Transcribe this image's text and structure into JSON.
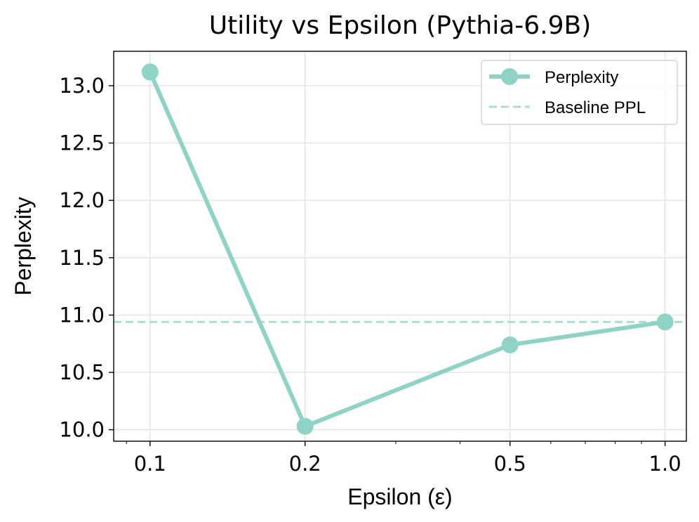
{
  "chart_data": {
    "type": "line",
    "title": "Utility vs Epsilon (Pythia-6.9B)",
    "xlabel": "Epsilon (ε)",
    "ylabel": "Perplexity",
    "x_scale": "log",
    "xlim": [
      0.085,
      1.1
    ],
    "ylim": [
      9.9,
      13.3
    ],
    "x_ticks": [
      0.1,
      0.2,
      0.5,
      1.0
    ],
    "x_tick_labels": [
      "0.1",
      "0.2",
      "0.5",
      "1.0"
    ],
    "y_ticks": [
      10.0,
      10.5,
      11.0,
      11.5,
      12.0,
      12.5,
      13.0
    ],
    "y_tick_labels": [
      "10.0",
      "10.5",
      "11.0",
      "11.5",
      "12.0",
      "12.5",
      "13.0"
    ],
    "grid": true,
    "legend_position": "top-right",
    "series": [
      {
        "name": "Perplexity",
        "style": "solid-line-circle-markers",
        "color": "#8fd3c7",
        "x": [
          0.1,
          0.2,
          0.5,
          1.0
        ],
        "y": [
          13.12,
          10.03,
          10.74,
          10.94
        ]
      }
    ],
    "reference_lines": [
      {
        "name": "Baseline PPL",
        "orientation": "horizontal",
        "style": "dashed",
        "color": "#a8dfd5",
        "y": 10.94
      }
    ]
  }
}
